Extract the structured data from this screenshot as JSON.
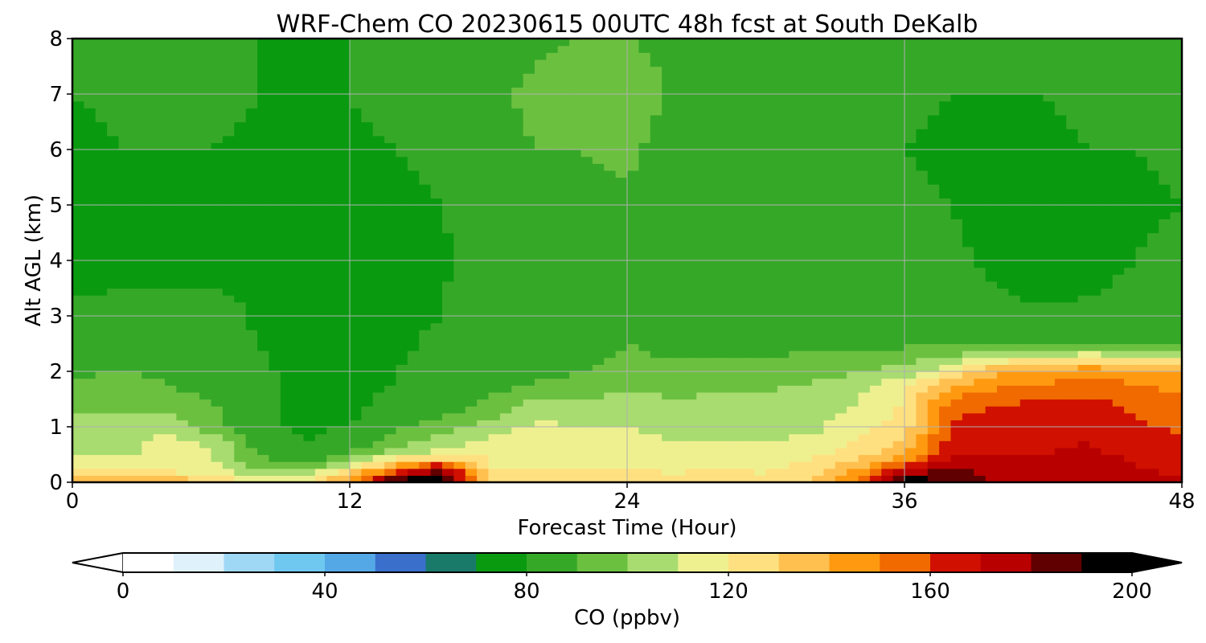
{
  "chart_data": {
    "type": "heatmap",
    "title": "WRF-Chem CO  20230615 00UTC 48h fcst at South DeKalb",
    "xlabel": "Forecast Time (Hour)",
    "ylabel": "Alt AGL (km)",
    "xlim": [
      0,
      48
    ],
    "ylim": [
      0,
      8
    ],
    "x_ticks": [
      0,
      12,
      24,
      36,
      48
    ],
    "y_ticks": [
      0,
      1,
      2,
      3,
      4,
      5,
      6,
      7,
      8
    ],
    "grid": true,
    "colorbar": {
      "label": "CO  (ppbv)",
      "min": 0,
      "max": 200,
      "ticks": [
        0,
        40,
        80,
        120,
        160,
        200
      ],
      "extend": "both",
      "colors": [
        "#ffffff",
        "#dff1fb",
        "#9fd8f5",
        "#6ec8f0",
        "#55a8e6",
        "#3a6fcc",
        "#1a7a6a",
        "#0a9a10",
        "#36a828",
        "#6cc040",
        "#a8dc70",
        "#eef090",
        "#ffe080",
        "#ffc050",
        "#ff9a10",
        "#f06a00",
        "#d01000",
        "#b80000",
        "#600000",
        "#000000"
      ]
    },
    "x": [
      0,
      2,
      4,
      6,
      8,
      10,
      12,
      14,
      16,
      18,
      20,
      22,
      24,
      26,
      28,
      30,
      32,
      34,
      36,
      38,
      40,
      42,
      44,
      46,
      48
    ],
    "y": [
      0,
      0.25,
      0.5,
      0.75,
      1.0,
      1.25,
      1.5,
      1.75,
      2.0,
      2.5,
      3.0,
      3.5,
      4.0,
      5.0,
      6.0,
      7.0,
      8.0
    ],
    "values": [
      [
        145,
        145,
        140,
        130,
        115,
        115,
        150,
        200,
        200,
        130,
        128,
        126,
        125,
        125,
        125,
        125,
        130,
        150,
        200,
        190,
        180,
        180,
        180,
        175,
        170
      ],
      [
        120,
        118,
        115,
        112,
        100,
        95,
        120,
        150,
        180,
        120,
        120,
        120,
        120,
        118,
        120,
        118,
        125,
        140,
        170,
        180,
        175,
        175,
        175,
        170,
        168
      ],
      [
        110,
        108,
        112,
        112,
        88,
        82,
        90,
        108,
        115,
        118,
        118,
        118,
        118,
        112,
        118,
        115,
        118,
        125,
        138,
        170,
        170,
        170,
        172,
        168,
        165
      ],
      [
        108,
        108,
        112,
        108,
        84,
        80,
        82,
        95,
        105,
        112,
        115,
        115,
        115,
        110,
        110,
        110,
        112,
        120,
        130,
        165,
        168,
        168,
        170,
        165,
        162
      ],
      [
        104,
        102,
        108,
        95,
        82,
        79,
        80,
        88,
        95,
        105,
        112,
        110,
        110,
        104,
        106,
        106,
        108,
        115,
        125,
        162,
        165,
        166,
        168,
        162,
        158
      ],
      [
        100,
        100,
        100,
        92,
        81,
        78,
        79,
        84,
        88,
        95,
        108,
        105,
        108,
        102,
        105,
        105,
        107,
        112,
        122,
        158,
        162,
        164,
        165,
        160,
        155
      ],
      [
        96,
        98,
        93,
        90,
        82,
        78,
        78,
        82,
        85,
        90,
        100,
        100,
        104,
        100,
        103,
        102,
        105,
        110,
        120,
        150,
        158,
        160,
        162,
        156,
        152
      ],
      [
        92,
        95,
        90,
        88,
        82,
        78,
        78,
        80,
        82,
        86,
        92,
        95,
        96,
        96,
        97,
        98,
        102,
        108,
        118,
        140,
        148,
        150,
        155,
        150,
        148
      ],
      [
        88,
        90,
        88,
        86,
        81,
        78,
        78,
        80,
        82,
        84,
        86,
        90,
        92,
        92,
        92,
        92,
        95,
        98,
        104,
        118,
        140,
        145,
        148,
        145,
        142
      ],
      [
        84,
        86,
        85,
        85,
        80,
        78,
        78,
        79,
        81,
        82,
        84,
        86,
        90,
        88,
        88,
        88,
        88,
        88,
        88,
        86,
        85,
        86,
        88,
        86,
        88
      ],
      [
        82,
        82,
        82,
        83,
        79,
        78,
        78,
        79,
        80,
        82,
        84,
        86,
        88,
        86,
        86,
        86,
        87,
        86,
        85,
        84,
        82,
        82,
        82,
        84,
        86
      ],
      [
        79,
        80,
        80,
        80,
        79,
        78,
        78,
        78,
        80,
        82,
        84,
        86,
        86,
        86,
        86,
        86,
        86,
        86,
        84,
        82,
        80,
        78,
        79,
        82,
        84
      ],
      [
        77,
        78,
        79,
        79,
        78,
        77,
        78,
        77,
        79,
        82,
        85,
        86,
        86,
        86,
        86,
        85,
        84,
        84,
        83,
        81,
        79,
        77,
        78,
        80,
        82
      ],
      [
        77,
        78,
        79,
        79,
        78,
        77,
        78,
        78,
        80,
        84,
        86,
        88,
        88,
        86,
        86,
        84,
        83,
        82,
        81,
        80,
        78,
        78,
        79,
        79,
        80
      ],
      [
        78,
        80,
        80,
        80,
        79,
        78,
        79,
        80,
        82,
        86,
        90,
        90,
        92,
        86,
        85,
        84,
        82,
        81,
        80,
        79,
        79,
        79,
        80,
        80,
        81
      ],
      [
        80,
        81,
        81,
        82,
        80,
        79,
        80,
        82,
        84,
        88,
        92,
        94,
        96,
        88,
        86,
        85,
        83,
        82,
        81,
        80,
        80,
        80,
        81,
        82,
        82
      ],
      [
        81,
        82,
        82,
        82,
        80,
        79,
        80,
        84,
        86,
        86,
        88,
        90,
        90,
        88,
        87,
        86,
        84,
        83,
        82,
        81,
        81,
        82,
        83,
        84,
        84
      ]
    ]
  }
}
